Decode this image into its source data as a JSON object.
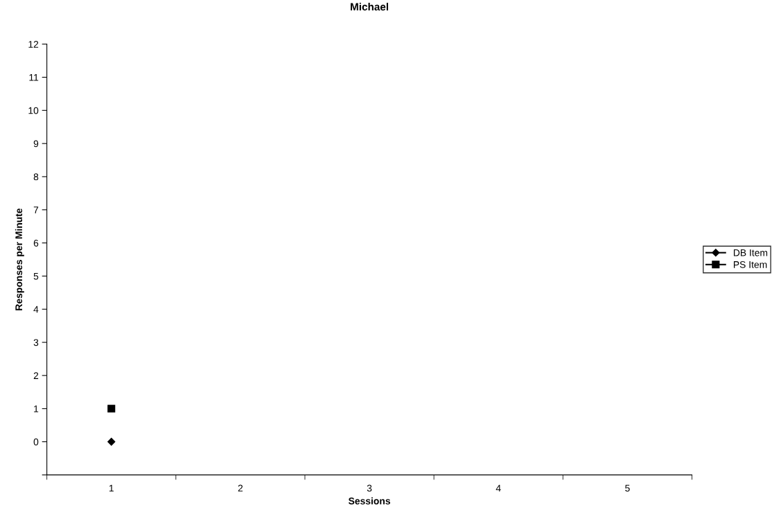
{
  "chart_data": {
    "type": "line",
    "title": "Michael",
    "xlabel": "Sessions",
    "ylabel": "Responses per Minute",
    "categories": [
      "1",
      "2",
      "3",
      "4",
      "5"
    ],
    "series": [
      {
        "name": "DB Item",
        "color": "#000000",
        "marker": "diamond",
        "values": [
          0,
          null,
          null,
          null,
          null
        ]
      },
      {
        "name": "PS Item",
        "color": "#000000",
        "marker": "square",
        "values": [
          1,
          null,
          null,
          null,
          null
        ]
      }
    ],
    "ylim": [
      -1,
      12
    ],
    "yticks": [
      {
        "value": -1,
        "label": null
      },
      0,
      1,
      2,
      3,
      4,
      5,
      6,
      7,
      8,
      9,
      10,
      11,
      12
    ],
    "grid": false,
    "legend": "right",
    "line_style": "solid"
  }
}
